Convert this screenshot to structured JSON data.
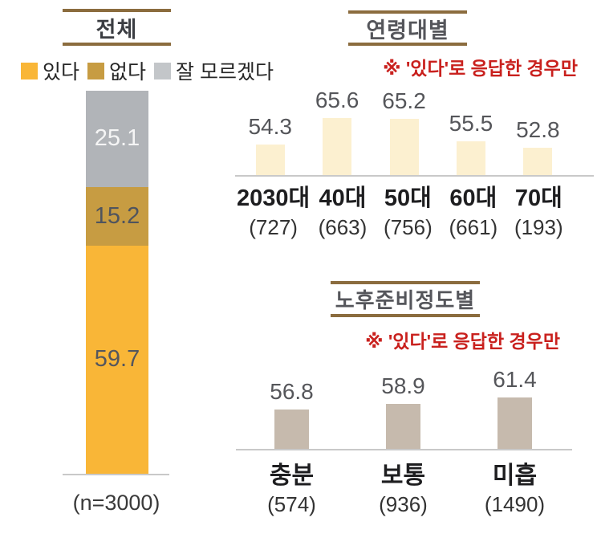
{
  "colors": {
    "yes_orange": "#F9B637",
    "no_gold": "#C79C42",
    "dont_know_gray": "#B1B4B8",
    "age_bar_cream": "#FCF0D0",
    "prep_bar_taupe": "#C6BAAD",
    "title_rule_brown": "#8B6C3E",
    "note_red": "#C9211E",
    "baseline_gray": "#C9C9C9"
  },
  "chart_data": [
    {
      "type": "bar",
      "subtype": "stacked_column",
      "title": "전체",
      "legend_position": "top",
      "categories": [
        "전체"
      ],
      "series": [
        {
          "name": "있다",
          "values": [
            59.7
          ],
          "color": "#F9B637"
        },
        {
          "name": "없다",
          "values": [
            15.2
          ],
          "color": "#C79C42"
        },
        {
          "name": "잘 모르겠다",
          "values": [
            25.1
          ],
          "color": "#B1B4B8"
        }
      ],
      "ylim": [
        0,
        100
      ],
      "grid": false,
      "footnote": "(n=3000)"
    },
    {
      "type": "bar",
      "title": "연령대별",
      "note": "※ '있다'로 응답한 경우만",
      "categories": [
        "2030대",
        "40대",
        "50대",
        "60대",
        "70대"
      ],
      "count_labels": [
        "(727)",
        "(663)",
        "(756)",
        "(661)",
        "(193)"
      ],
      "counts": [
        727,
        663,
        756,
        661,
        193
      ],
      "values": [
        54.3,
        65.6,
        65.2,
        55.5,
        52.8
      ],
      "bar_color": "#FCF0D0",
      "grid": false,
      "axis": "baseline_only"
    },
    {
      "type": "bar",
      "title": "노후준비정도별",
      "note": "※ '있다'로 응답한 경우만",
      "categories": [
        "충분",
        "보통",
        "미흡"
      ],
      "count_labels": [
        "(574)",
        "(936)",
        "(1490)"
      ],
      "counts": [
        574,
        936,
        1490
      ],
      "values": [
        56.8,
        58.9,
        61.4
      ],
      "bar_color": "#C6BAAD",
      "grid": false,
      "axis": "baseline_only"
    }
  ]
}
